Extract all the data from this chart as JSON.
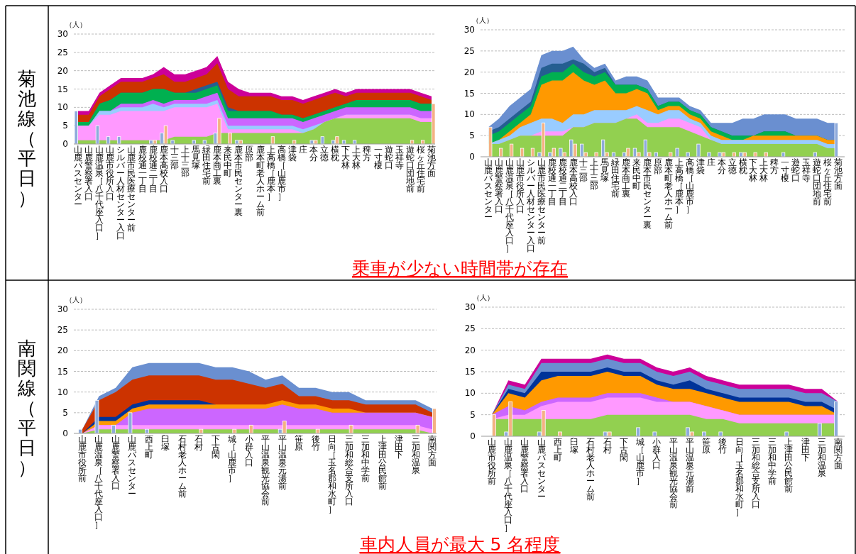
{
  "chart_data": [
    {
      "type": "area",
      "ylabel": "（人）",
      "grid": "y",
      "ylim": [
        0,
        30
      ],
      "yticks": [
        0,
        5,
        10,
        15,
        20,
        25,
        30
      ],
      "annotations": [
        "菊池線（平日）"
      ],
      "categories": [
        "山鹿バスセンター",
        "山鹿警察署入口",
        "山鹿温泉［八千代座入口］",
        "山鹿市役所入口",
        "シルバー人材センター入口",
        "山鹿市民医療センター前",
        "鹿校通一丁目",
        "鹿校通二丁目",
        "鹿本高校入口",
        "十三部",
        "上十三部",
        "馬見塚",
        "緑田住宅前",
        "鹿本商工裏",
        "来民中町",
        "鹿本市民センター裏",
        "原部",
        "鹿本町老人ホーム前",
        "上高橋［鹿本］",
        "高橋［山鹿市］",
        "津袋",
        "庄",
        "本分",
        "立徳",
        "横枕",
        "下大林",
        "上大林",
        "稗方",
        "一寸榎",
        "遊蛇口",
        "玉祥寺",
        "遊蛇口団地前",
        "桜ヶ丘住宅前",
        "菊池方面"
      ],
      "series": [
        {
          "color": "#cc0099",
          "values": [
            9,
            9,
            14,
            16,
            18,
            18,
            18,
            19,
            21,
            19,
            19,
            20,
            21,
            24,
            17,
            15,
            14,
            14,
            14,
            13,
            13,
            12,
            13,
            14,
            15,
            14,
            15,
            15,
            15,
            15,
            15,
            15,
            14,
            13
          ]
        },
        {
          "color": "#cc3300",
          "values": [
            8,
            8,
            13,
            15,
            17,
            17,
            17,
            18,
            19,
            17,
            17,
            18,
            19,
            22,
            15,
            13,
            13,
            13,
            13,
            12,
            12,
            11,
            12,
            13,
            14,
            13,
            14,
            14,
            14,
            14,
            14,
            14,
            13,
            12
          ]
        },
        {
          "color": "#255e91",
          "values": [
            6,
            6,
            11,
            12,
            14,
            14,
            14,
            15,
            15,
            14,
            14,
            15,
            16,
            17,
            10,
            9,
            9,
            9,
            9,
            8,
            8,
            7,
            8,
            9,
            10,
            11,
            12,
            12,
            12,
            12,
            12,
            12,
            11,
            11
          ]
        },
        {
          "color": "#00b050",
          "values": [
            6,
            6,
            11,
            12,
            14,
            14,
            14,
            15,
            15,
            14,
            14,
            14,
            15,
            16,
            9,
            9,
            9,
            9,
            9,
            8,
            8,
            7,
            8,
            9,
            10,
            11,
            12,
            12,
            12,
            12,
            12,
            12,
            11,
            11
          ]
        },
        {
          "color": "#cc66ff",
          "values": [
            5,
            5,
            9,
            9,
            11,
            11,
            11,
            12,
            11,
            12,
            12,
            12,
            13,
            14,
            7,
            7,
            7,
            7,
            7,
            7,
            7,
            6,
            7,
            8,
            9,
            10,
            10,
            10,
            10,
            10,
            10,
            10,
            9,
            9
          ]
        },
        {
          "color": "#99ccff",
          "values": [
            5,
            5,
            9,
            9,
            10,
            10,
            10,
            11,
            10,
            11,
            11,
            11,
            11,
            12,
            5,
            5,
            5,
            5,
            5,
            5,
            5,
            4,
            5,
            6,
            7,
            8,
            8,
            8,
            8,
            8,
            8,
            8,
            7,
            7
          ]
        },
        {
          "color": "#ff99ff",
          "values": [
            5,
            5,
            8,
            8,
            9,
            9,
            9,
            9,
            9,
            10,
            10,
            10,
            10,
            11,
            4,
            4,
            4,
            4,
            4,
            4,
            4,
            3,
            4,
            6,
            7,
            8,
            8,
            8,
            8,
            8,
            8,
            8,
            7,
            7
          ]
        },
        {
          "color": "#92d050",
          "values": [
            1,
            1,
            1,
            1,
            1,
            1,
            1,
            1,
            1,
            2,
            2,
            2,
            2,
            3,
            3,
            3,
            3,
            3,
            3,
            3,
            3,
            3,
            4,
            6,
            7,
            7,
            7,
            7,
            7,
            7,
            7,
            7,
            6,
            6
          ]
        },
        {
          "type": "bar",
          "color": "#8eaadb",
          "values": [
            9,
            null,
            5,
            2,
            2,
            null,
            null,
            1,
            3,
            1,
            null,
            1,
            1,
            3,
            null,
            1,
            null,
            null,
            null,
            null,
            null,
            null,
            1,
            2,
            1,
            1,
            1,
            null,
            null,
            null,
            null,
            null,
            null,
            null
          ]
        },
        {
          "type": "bar",
          "color": "#f4b183",
          "values": [
            null,
            null,
            null,
            null,
            null,
            null,
            null,
            1,
            5,
            null,
            null,
            null,
            null,
            7,
            3,
            1,
            null,
            null,
            2,
            null,
            1,
            null,
            1,
            null,
            2,
            null,
            null,
            null,
            null,
            null,
            null,
            1,
            1,
            11
          ]
        }
      ]
    },
    {
      "type": "area",
      "ylabel": "（人）",
      "grid": "y",
      "ylim": [
        0,
        30
      ],
      "yticks": [
        0,
        5,
        10,
        15,
        20,
        25,
        30
      ],
      "annotations": [
        "乗車が少ない時間帯が存在"
      ],
      "categories": [
        "山鹿バスセンター",
        "山鹿警察署入口",
        "山鹿温泉［八千代座入口］",
        "山鹿市役所入口",
        "シルバー人材センター入口",
        "山鹿市民医療センター前",
        "鹿校通一丁目",
        "鹿校通二丁目",
        "鹿本高校入口",
        "十三部",
        "上十三部",
        "馬見塚",
        "緑田住宅前",
        "鹿本商工裏",
        "来民中町",
        "鹿本市民センター裏",
        "原部",
        "鹿本町老人ホーム前",
        "上高橋［鹿本］",
        "高橋［山鹿市］",
        "津袋",
        "庄",
        "本分",
        "立徳",
        "横枕",
        "下大林",
        "上大林",
        "稗方",
        "一寸榎",
        "遊蛇口",
        "玉祥寺",
        "遊蛇口団地前",
        "桜ヶ丘住宅前",
        "菊池方面"
      ],
      "series": [
        {
          "color": "#6a8fd0",
          "values": [
            7,
            9,
            12,
            14,
            16,
            24,
            25,
            25,
            26,
            23,
            21,
            22,
            18,
            19,
            19,
            18,
            14,
            14,
            14,
            12,
            11,
            8,
            8,
            8,
            9,
            9,
            10,
            10,
            10,
            9,
            9,
            9,
            8,
            8
          ]
        },
        {
          "color": "#255e91",
          "values": [
            6,
            7,
            9,
            11,
            13,
            21,
            22,
            22,
            23,
            22,
            20,
            21,
            17,
            17,
            17,
            16,
            12,
            13,
            13,
            11,
            10,
            7,
            6,
            5,
            5,
            5,
            6,
            6,
            6,
            5,
            5,
            5,
            4,
            4
          ]
        },
        {
          "color": "#00b050",
          "values": [
            5,
            6,
            8,
            10,
            12,
            19,
            20,
            20,
            22,
            20,
            19,
            20,
            17,
            17,
            17,
            16,
            12,
            13,
            13,
            11,
            10,
            7,
            6,
            5,
            5,
            5,
            6,
            6,
            6,
            5,
            5,
            5,
            4,
            4
          ]
        },
        {
          "color": "#ff9900",
          "values": [
            3,
            4,
            6,
            8,
            10,
            17,
            18,
            18,
            20,
            18,
            17,
            18,
            15,
            15,
            16,
            15,
            11,
            12,
            12,
            10,
            9,
            6,
            5,
            4,
            4,
            5,
            5,
            5,
            5,
            5,
            5,
            5,
            4,
            4
          ]
        },
        {
          "color": "#99ccff",
          "values": [
            3,
            4,
            5,
            7,
            8,
            9,
            9,
            8,
            10,
            10,
            11,
            11,
            11,
            11,
            12,
            11,
            10,
            11,
            11,
            9,
            8,
            5,
            4,
            4,
            4,
            4,
            4,
            4,
            4,
            4,
            4,
            4,
            3,
            3
          ]
        },
        {
          "color": "#ff99ff",
          "values": [
            3,
            3,
            4,
            5,
            5,
            6,
            6,
            6,
            7,
            7,
            8,
            8,
            8,
            9,
            10,
            8,
            8,
            9,
            9,
            8,
            7,
            4,
            3,
            3,
            3,
            3,
            3,
            3,
            3,
            3,
            3,
            3,
            2,
            2
          ]
        },
        {
          "color": "#92d050",
          "values": [
            3,
            3,
            4,
            5,
            5,
            5,
            5,
            5,
            7,
            7,
            8,
            8,
            8,
            9,
            9,
            7,
            7,
            7,
            7,
            6,
            5,
            4,
            3,
            3,
            3,
            3,
            3,
            3,
            3,
            3,
            3,
            3,
            2,
            2
          ]
        },
        {
          "type": "bar",
          "color": "#8eaadb",
          "values": [
            null,
            null,
            null,
            null,
            null,
            1,
            1,
            2,
            4,
            3,
            null,
            4,
            1,
            1,
            2,
            4,
            1,
            null,
            2,
            1,
            3,
            1,
            1,
            null,
            1,
            null,
            null,
            null,
            1,
            null,
            null,
            1,
            null,
            8
          ]
        },
        {
          "type": "bar",
          "color": "#f4b183",
          "values": [
            7,
            2,
            3,
            2,
            2,
            8,
            2,
            1,
            3,
            1,
            1,
            1,
            null,
            2,
            1,
            1,
            null,
            1,
            null,
            null,
            null,
            null,
            1,
            1,
            1,
            1,
            1,
            null,
            null,
            null,
            null,
            null,
            null,
            null
          ]
        }
      ]
    },
    {
      "type": "area",
      "ylabel": "（人）",
      "grid": "y",
      "ylim": [
        0,
        30
      ],
      "yticks": [
        0,
        5,
        10,
        15,
        20,
        25,
        30
      ],
      "annotations": [
        "南関線（平日）"
      ],
      "categories": [
        "山鹿市役所前",
        "山鹿温泉［八千代座入口］",
        "山鹿警察署入口",
        "山鹿バスセンター",
        "西上町",
        "臼塚",
        "石村老人ホーム前",
        "石村",
        "下古閑",
        "城［山鹿市］",
        "小群入口",
        "平山温泉観光協会前",
        "平山温泉元湯前",
        "笹原",
        "後竹",
        "日向［玉名郡和水町］",
        "三加和総合支所入口",
        "三加和中学前",
        "上津田公民館前",
        "津田下",
        "三加和温泉",
        "南関方面"
      ],
      "series": [
        {
          "color": "#6a8fd0",
          "values": [
            1,
            9,
            11,
            16,
            17,
            17,
            17,
            17,
            16,
            16,
            15,
            13,
            14,
            11,
            11,
            10,
            10,
            8,
            8,
            8,
            8,
            6
          ]
        },
        {
          "color": "#cc3300",
          "values": [
            1,
            8,
            10,
            13,
            14,
            14,
            14,
            14,
            13,
            13,
            12,
            11,
            12,
            9,
            9,
            8,
            8,
            7,
            7,
            7,
            7,
            5
          ]
        },
        {
          "color": "#003399",
          "values": [
            0,
            4,
            4,
            7,
            8,
            8,
            8,
            8,
            7,
            null,
            null,
            null,
            null,
            null,
            null,
            null,
            null,
            null,
            null,
            null,
            null,
            null
          ]
        },
        {
          "color": "#ff9900",
          "values": [
            0,
            3,
            3,
            6,
            7,
            7,
            7,
            7,
            7,
            7,
            7,
            7,
            8,
            7,
            7,
            6,
            6,
            5,
            5,
            5,
            5,
            4
          ]
        },
        {
          "color": "#cc66ff",
          "values": [
            0,
            2,
            2,
            5,
            6,
            6,
            6,
            6,
            6,
            6,
            6,
            6,
            7,
            6,
            6,
            5,
            5,
            5,
            5,
            5,
            5,
            4
          ]
        },
        {
          "color": "#ff99ff",
          "values": [
            0,
            2,
            2,
            2,
            2,
            2,
            2,
            2,
            2,
            2,
            2,
            2,
            2,
            2,
            2,
            2,
            2,
            2,
            2,
            2,
            2,
            1
          ]
        },
        {
          "color": "#92d050",
          "values": [
            0,
            1,
            1,
            1,
            1,
            1,
            1,
            1,
            1,
            1,
            1,
            1,
            1,
            1,
            1,
            1,
            1,
            1,
            1,
            1,
            1,
            0
          ]
        },
        {
          "type": "bar",
          "color": "#8eaadb",
          "values": [
            1,
            8,
            2,
            5,
            1,
            null,
            null,
            null,
            null,
            null,
            null,
            null,
            1,
            null,
            null,
            null,
            null,
            null,
            null,
            null,
            null,
            null
          ]
        },
        {
          "type": "bar",
          "color": "#f4b183",
          "values": [
            null,
            null,
            null,
            null,
            null,
            null,
            null,
            1,
            null,
            1,
            2,
            null,
            3,
            null,
            1,
            null,
            2,
            null,
            null,
            null,
            2,
            6
          ]
        }
      ]
    },
    {
      "type": "area",
      "ylabel": "（人）",
      "grid": "y",
      "ylim": [
        0,
        30
      ],
      "yticks": [
        0,
        5,
        10,
        15,
        20,
        25,
        30
      ],
      "annotations": [
        "車内人員が最大 5 名程度"
      ],
      "categories": [
        "山鹿市役所前",
        "山鹿温泉［八千代座入口］",
        "山鹿警察署入口",
        "山鹿バスセンター",
        "西上町",
        "臼塚",
        "石村老人ホーム前",
        "石村",
        "下古閑",
        "城［山鹿市］",
        "小群入口",
        "平山温泉観光協会前",
        "平山温泉元湯前",
        "笹原",
        "後竹",
        "日向［玉名郡和水町］",
        "三加和総合支所入口",
        "三加和中学前",
        "上津田公民館前",
        "津田下",
        "三加和温泉",
        "南関方面"
      ],
      "series": [
        {
          "color": "#cc0099",
          "values": [
            5,
            13,
            12,
            18,
            18,
            18,
            18,
            19,
            18,
            18,
            16,
            15,
            16,
            14,
            13,
            12,
            12,
            12,
            12,
            11,
            11,
            8
          ]
        },
        {
          "color": "#6a8fd0",
          "values": [
            5,
            12,
            11,
            17,
            17,
            17,
            17,
            18,
            17,
            17,
            15,
            14,
            15,
            13,
            12,
            11,
            11,
            11,
            11,
            10,
            10,
            8
          ]
        },
        {
          "color": "#003399",
          "values": [
            5,
            11,
            10,
            15,
            15,
            15,
            15,
            16,
            15,
            15,
            13,
            12,
            13,
            11,
            10,
            9,
            9,
            9,
            9,
            8,
            8,
            6
          ]
        },
        {
          "color": "#ff9900",
          "values": [
            5,
            10,
            9,
            13,
            14,
            14,
            14,
            15,
            14,
            14,
            12,
            11,
            11,
            10,
            9,
            8,
            8,
            8,
            8,
            7,
            7,
            5
          ]
        },
        {
          "color": "#cc66ff",
          "values": [
            5,
            7,
            6,
            8,
            9,
            9,
            9,
            10,
            10,
            10,
            9,
            8,
            8,
            7,
            6,
            5,
            5,
            5,
            5,
            5,
            5,
            5
          ]
        },
        {
          "color": "#ff99ff",
          "values": [
            4,
            5,
            5,
            7,
            8,
            8,
            8,
            9,
            9,
            9,
            8,
            8,
            8,
            7,
            6,
            5,
            5,
            5,
            5,
            5,
            5,
            5
          ]
        },
        {
          "color": "#92d050",
          "values": [
            4,
            4,
            4,
            4,
            4,
            4,
            4,
            5,
            5,
            5,
            5,
            5,
            5,
            4,
            4,
            3,
            3,
            3,
            3,
            3,
            3,
            3
          ]
        },
        {
          "type": "bar",
          "color": "#8eaadb",
          "values": [
            null,
            1,
            null,
            1,
            null,
            null,
            null,
            1,
            null,
            2,
            1,
            null,
            2,
            1,
            1,
            null,
            null,
            null,
            1,
            null,
            3,
            8
          ]
        },
        {
          "type": "bar",
          "color": "#f4b183",
          "values": [
            5,
            8,
            null,
            6,
            1,
            null,
            null,
            1,
            null,
            null,
            null,
            null,
            1,
            null,
            null,
            null,
            null,
            null,
            null,
            null,
            null,
            null
          ]
        }
      ]
    }
  ]
}
